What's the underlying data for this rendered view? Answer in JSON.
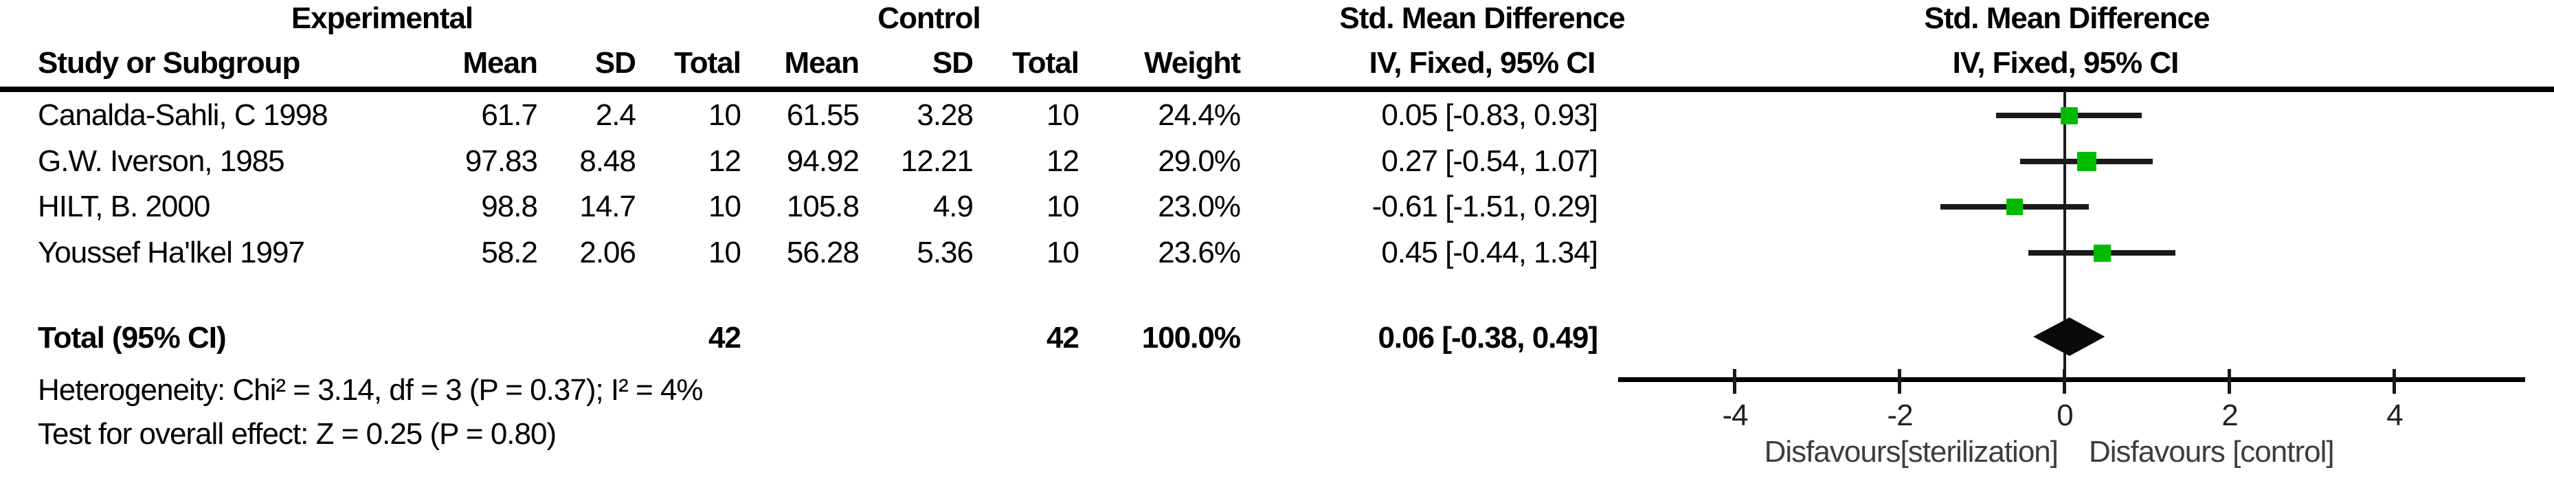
{
  "figure": {
    "group_headers": {
      "experimental": "Experimental",
      "control": "Control",
      "smd_table": "Std. Mean Difference",
      "smd_plot": "Std. Mean Difference"
    },
    "col_headers": {
      "study": "Study or Subgroup",
      "mean": "Mean",
      "sd": "SD",
      "total": "Total",
      "weight": "Weight",
      "method_ci": "IV, Fixed, 95% CI",
      "method_ci_plot": "IV, Fixed, 95% CI"
    }
  },
  "chart_data": {
    "type": "forest",
    "effect_measure": "Std. Mean Difference",
    "method": "IV, Fixed, 95% CI",
    "studies": [
      {
        "name": "Canalda-Sahli, C 1998",
        "exp_mean": "61.7",
        "exp_sd": "2.4",
        "exp_total": "10",
        "ctrl_mean": "61.55",
        "ctrl_sd": "3.28",
        "ctrl_total": "10",
        "weight": "24.4%",
        "weight_pct": 24.4,
        "smd": 0.05,
        "ci_low": -0.83,
        "ci_high": 0.93,
        "ci_label": "0.05 [-0.83, 0.93]"
      },
      {
        "name": "G.W. Iverson, 1985",
        "exp_mean": "97.83",
        "exp_sd": "8.48",
        "exp_total": "12",
        "ctrl_mean": "94.92",
        "ctrl_sd": "12.21",
        "ctrl_total": "12",
        "weight": "29.0%",
        "weight_pct": 29.0,
        "smd": 0.27,
        "ci_low": -0.54,
        "ci_high": 1.07,
        "ci_label": "0.27 [-0.54, 1.07]"
      },
      {
        "name": "HILT, B. 2000",
        "exp_mean": "98.8",
        "exp_sd": "14.7",
        "exp_total": "10",
        "ctrl_mean": "105.8",
        "ctrl_sd": "4.9",
        "ctrl_total": "10",
        "weight": "23.0%",
        "weight_pct": 23.0,
        "smd": -0.61,
        "ci_low": -1.51,
        "ci_high": 0.29,
        "ci_label": "-0.61 [-1.51, 0.29]"
      },
      {
        "name": "Youssef Ha'lkel 1997",
        "exp_mean": "58.2",
        "exp_sd": "2.06",
        "exp_total": "10",
        "ctrl_mean": "56.28",
        "ctrl_sd": "5.36",
        "ctrl_total": "10",
        "weight": "23.6%",
        "weight_pct": 23.6,
        "smd": 0.45,
        "ci_low": -0.44,
        "ci_high": 1.34,
        "ci_label": "0.45 [-0.44, 1.34]"
      }
    ],
    "total": {
      "label": "Total (95% CI)",
      "exp_total": "42",
      "ctrl_total": "42",
      "weight": "100.0%",
      "smd": 0.06,
      "ci_low": -0.38,
      "ci_high": 0.49,
      "ci_label": "0.06 [-0.38, 0.49]"
    },
    "footnotes": {
      "heterogeneity": "Heterogeneity: Chi² = 3.14, df = 3 (P = 0.37); I² = 4%",
      "overall_effect": "Test for overall effect: Z = 0.25 (P = 0.80)"
    },
    "axis": {
      "ticks": [
        -4,
        -2,
        0,
        2,
        4
      ],
      "xmin": -5.4,
      "xmax": 5.6,
      "left_label": "Disfavours[sterilization]",
      "right_label": "Disfavours [control]"
    },
    "colors": {
      "marker": "#00bc00",
      "line": "#000000",
      "text": "#000000"
    }
  }
}
